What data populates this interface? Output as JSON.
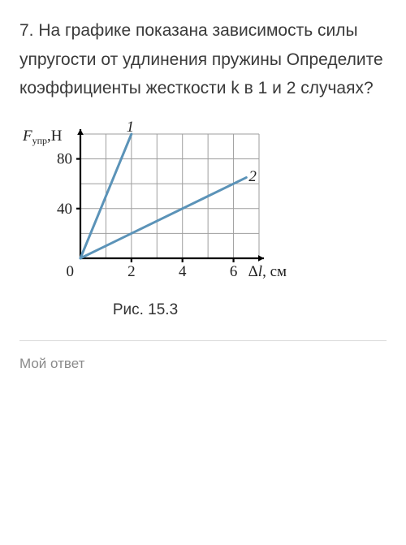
{
  "question_text": "7. На графике показана зависимость силы упругости от удлинения пружины Определите коэффициенты жесткости k в 1 и 2 случаях?",
  "chart": {
    "type": "line",
    "y_axis_label_html": "F_{упр}, Н",
    "x_axis_label_html": "Δl, см",
    "y_label_main": "F",
    "y_label_sub": "упр",
    "y_label_unit": ",H",
    "x_label_delta": "Δ",
    "x_label_var": "l",
    "x_label_unit": ", см",
    "xlim": [
      0,
      7
    ],
    "ylim": [
      0,
      100
    ],
    "x_ticks": [
      2,
      4,
      6
    ],
    "y_ticks": [
      40,
      80
    ],
    "x_grid": [
      1,
      2,
      3,
      4,
      5,
      6,
      7
    ],
    "y_grid": [
      20,
      40,
      60,
      80,
      100
    ],
    "grid_color": "#9e9e9e",
    "axis_color": "#000000",
    "background_color": "#ffffff",
    "series": [
      {
        "label": "1",
        "color": "#5b93b8",
        "width": 3,
        "points": [
          [
            0,
            0
          ],
          [
            2,
            100
          ]
        ],
        "label_pos": [
          1.8,
          102
        ]
      },
      {
        "label": "2",
        "color": "#5b93b8",
        "width": 3,
        "points": [
          [
            0,
            0
          ],
          [
            6.5,
            65
          ]
        ],
        "label_pos": [
          6.6,
          62
        ]
      }
    ],
    "origin_label": "0",
    "axis_width": 2.2,
    "tick_len": 5,
    "arrow_size": 7
  },
  "caption": "Рис. 15.3",
  "answer_label": "Мой ответ"
}
